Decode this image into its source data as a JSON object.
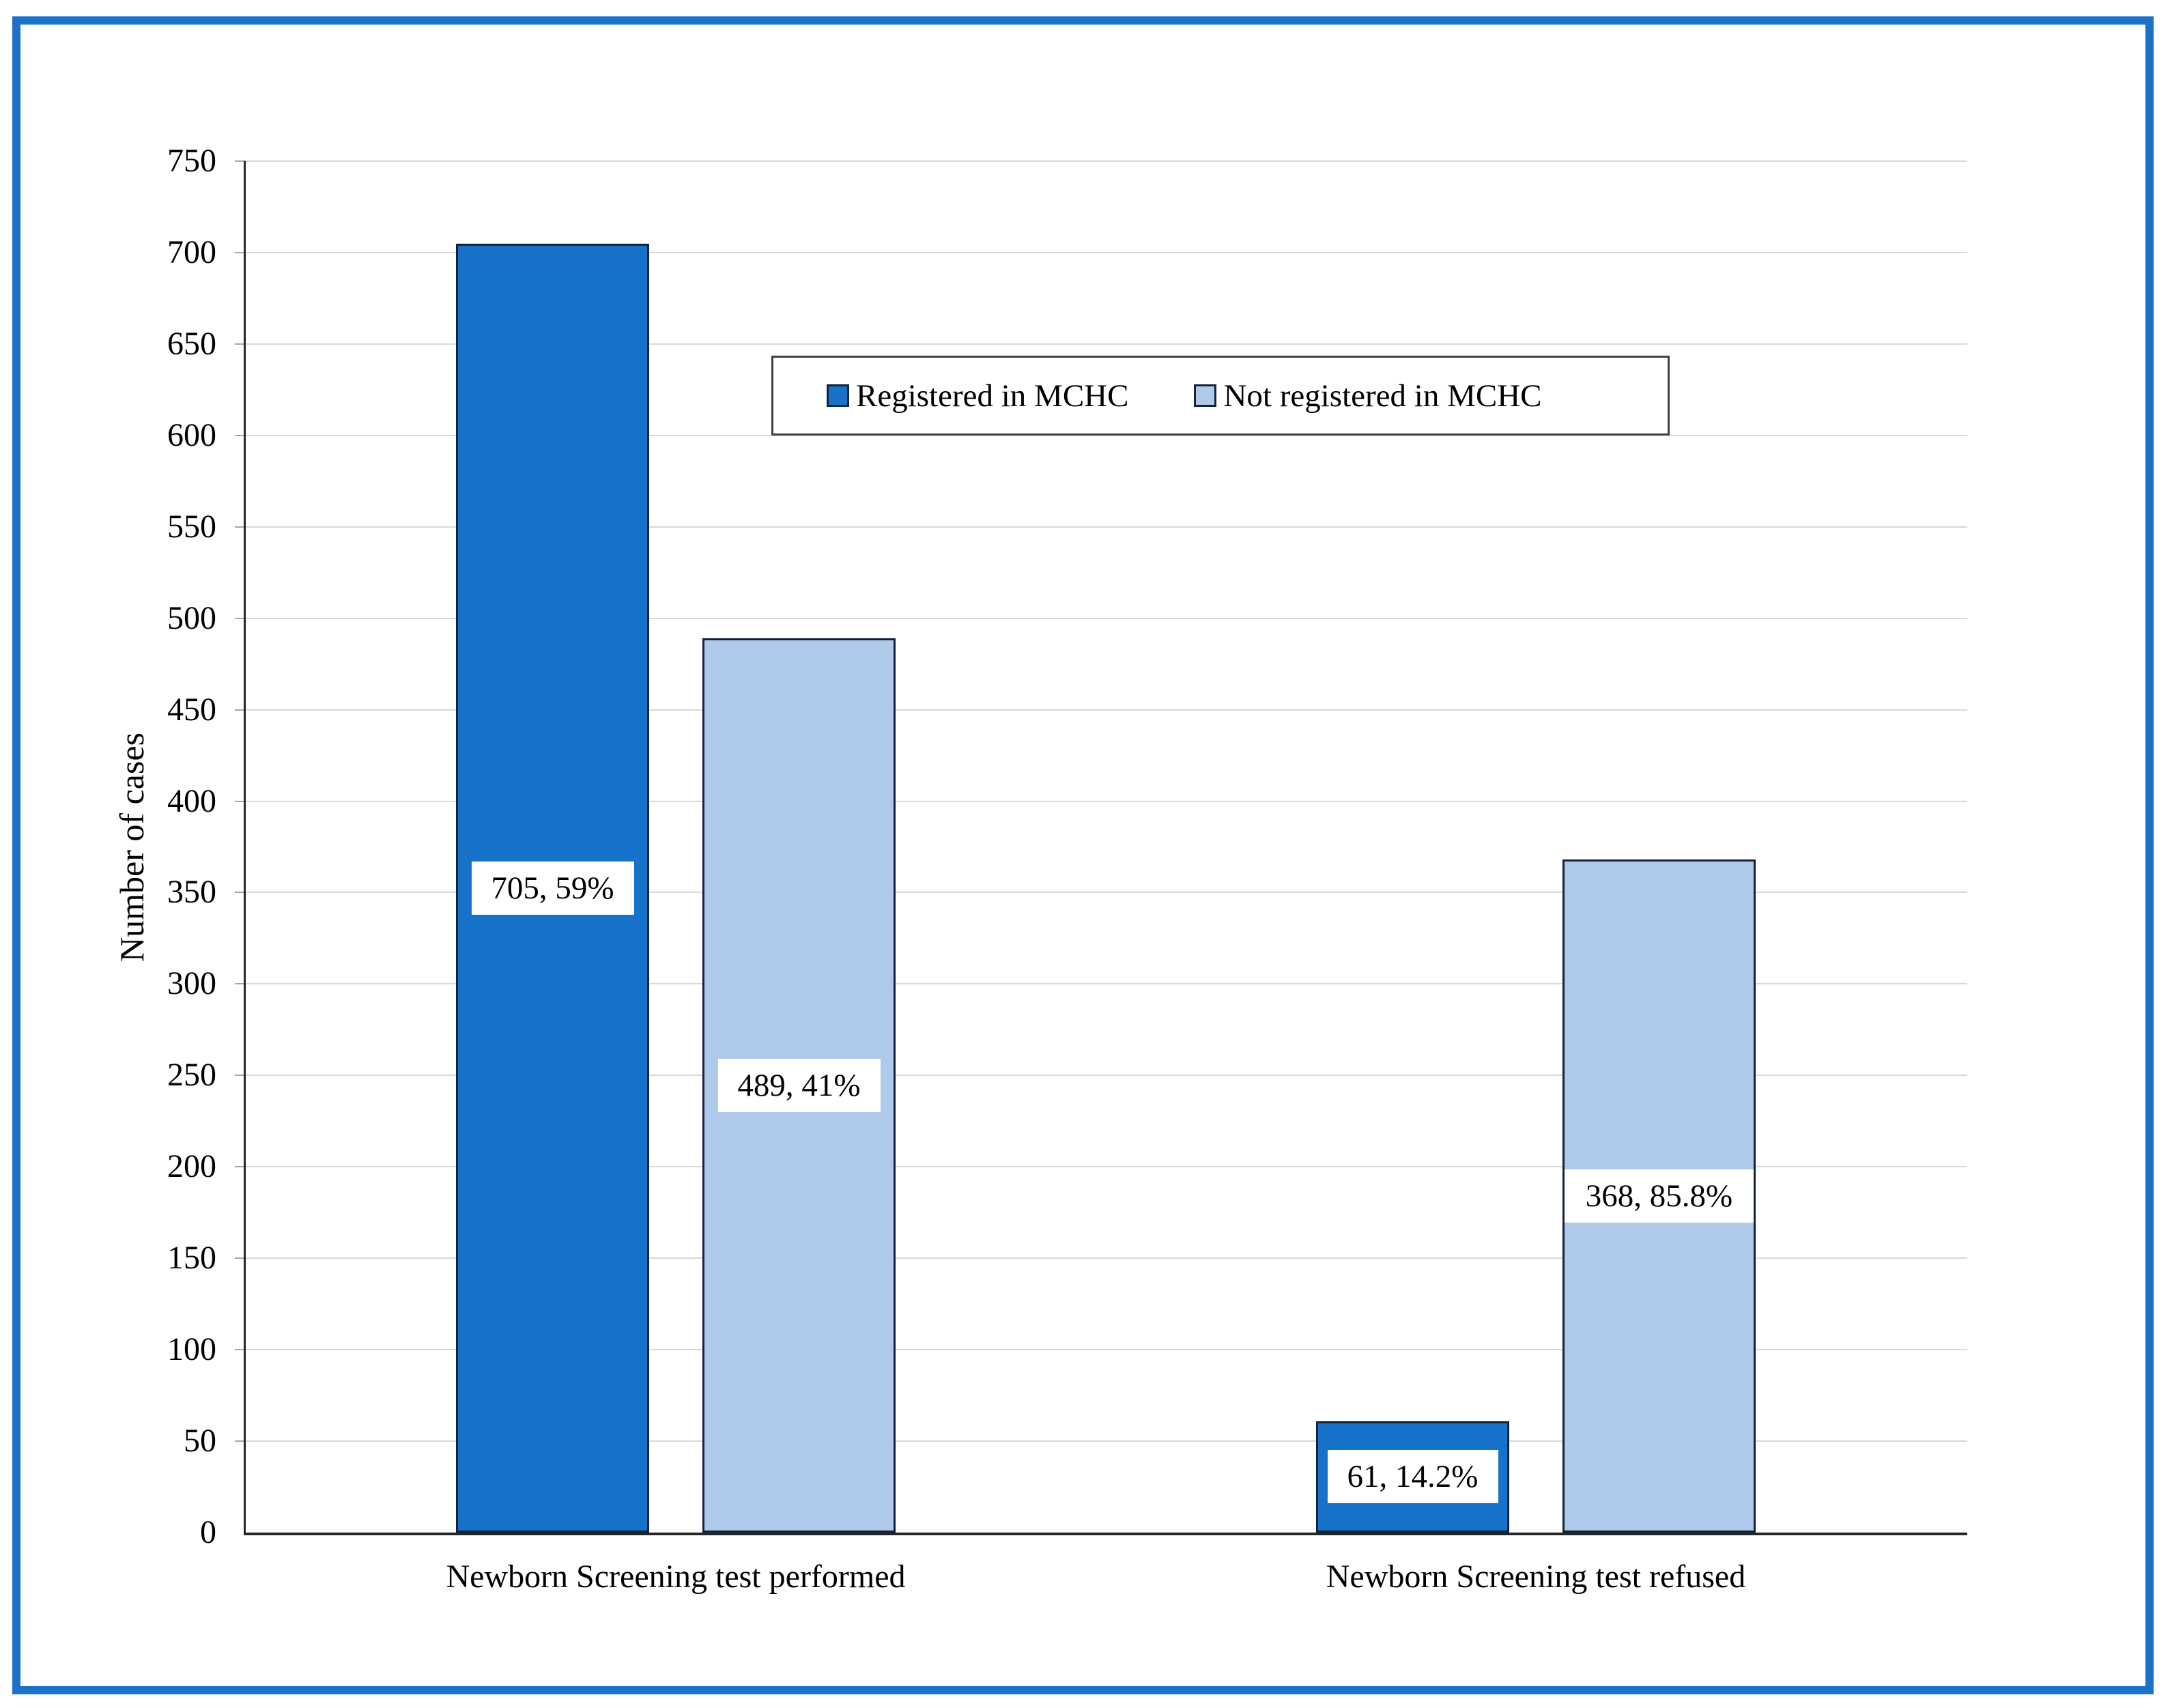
{
  "chart_data": {
    "type": "bar",
    "title": "",
    "ylabel": "Number of cases",
    "xlabel": "",
    "ylim": [
      0,
      750
    ],
    "ytick_step": 50,
    "grid": true,
    "legend_position": "top-center-inside",
    "categories": [
      "Newborn Screening test performed",
      "Newborn Screening test refused"
    ],
    "series": [
      {
        "name": "Registered in MCHC",
        "color": "#1673c9",
        "values": [
          705,
          61
        ],
        "data_labels": [
          "705, 59%",
          "61, 14.2%"
        ]
      },
      {
        "name": "Not registered in MCHC",
        "color": "#aec9e9",
        "values": [
          489,
          368
        ],
        "data_labels": [
          "489, 41%",
          "368, 85.8%"
        ]
      }
    ]
  },
  "style": {
    "frame_border_color": "#1b70c8",
    "bar_border_color": "#14213a",
    "gridline_color": "#d9d9d9",
    "tick_color": "#a6a6a6",
    "axis_color": "#262626",
    "text_color": "#000000",
    "label_box_bg": "#ffffff",
    "legend_border_color": "#404040"
  }
}
